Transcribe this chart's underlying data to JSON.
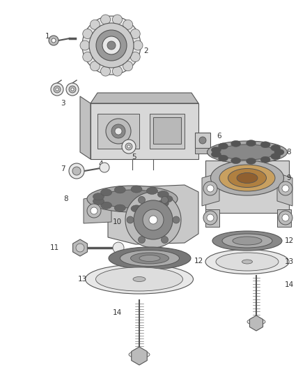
{
  "background_color": "#ffffff",
  "fig_width": 4.38,
  "fig_height": 5.33,
  "dpi": 100,
  "line_color": "#555555",
  "dark_color": "#333333",
  "light_gray": "#e8e8e8",
  "mid_gray": "#bbbbbb",
  "dark_gray": "#888888",
  "label_fontsize": 7.5,
  "line_width": 0.7
}
